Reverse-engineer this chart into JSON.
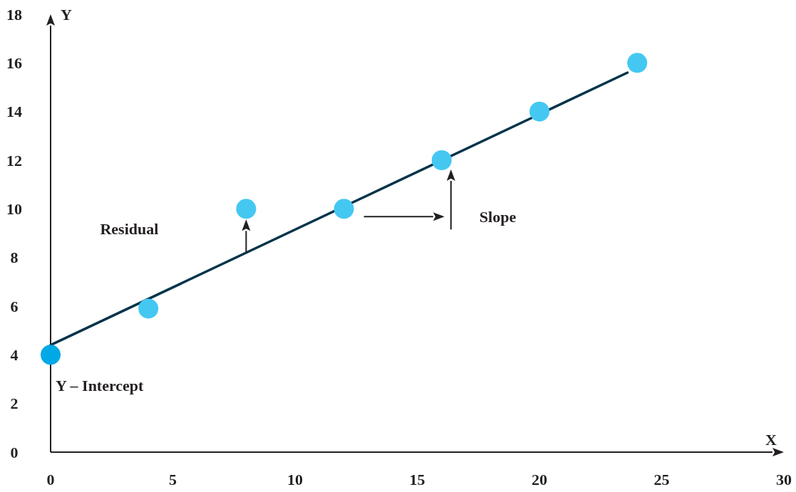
{
  "chart_data": {
    "type": "scatter",
    "xlabel": "X",
    "ylabel": "Y",
    "xlim": [
      0,
      30
    ],
    "xticks": [
      0,
      5,
      10,
      15,
      20,
      25,
      30
    ],
    "ylim": [
      0,
      18
    ],
    "yticks": [
      0,
      2,
      4,
      6,
      8,
      10,
      12,
      14,
      16,
      18
    ],
    "marker": "circle",
    "series": [
      {
        "type": "line",
        "color": "#003349",
        "x": [
          0,
          23.6
        ],
        "values": [
          4.4,
          15.6
        ],
        "marker": "none",
        "line_style": "solid"
      },
      {
        "x": [
          0,
          4,
          8,
          12,
          16,
          20,
          24
        ],
        "values": [
          4,
          5.9,
          10,
          10,
          12,
          14,
          16
        ],
        "colors": [
          "#00a9e6",
          "#44c8f2",
          "#44c8f2",
          "#44c8f2",
          "#44c8f2",
          "#44c8f2",
          "#44c8f2"
        ]
      }
    ],
    "annotations": [
      "Residual",
      "Slope",
      "Y – Intercept"
    ]
  }
}
